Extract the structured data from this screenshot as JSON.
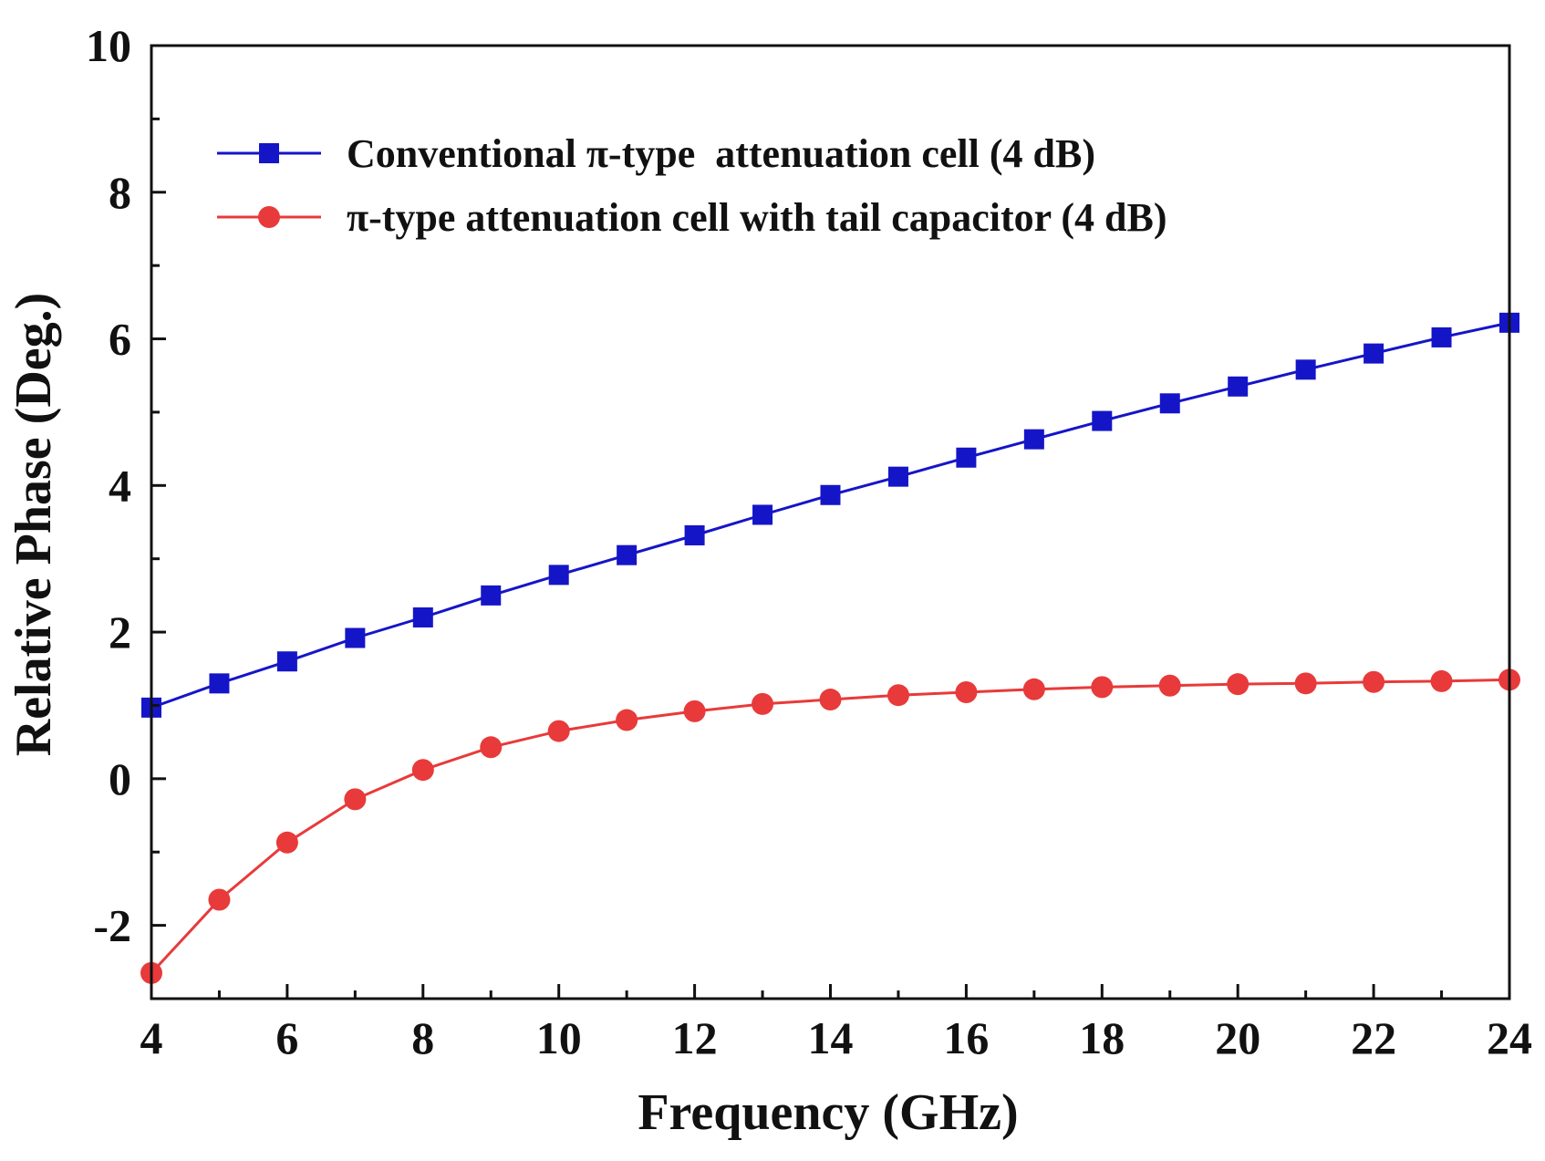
{
  "chart_data": {
    "type": "line",
    "title": "",
    "xlabel": "Frequency (GHz)",
    "ylabel": "Relative Phase (Deg.)",
    "xlim": [
      4,
      24
    ],
    "ylim": [
      -3,
      10
    ],
    "xticks": [
      4,
      6,
      8,
      10,
      12,
      14,
      16,
      18,
      20,
      22,
      24
    ],
    "yticks": [
      -2,
      0,
      2,
      4,
      6,
      8,
      10
    ],
    "grid": false,
    "legend_position": "top-left",
    "x": [
      4,
      5,
      6,
      7,
      8,
      9,
      10,
      11,
      12,
      13,
      14,
      15,
      16,
      17,
      18,
      19,
      20,
      21,
      22,
      23,
      24
    ],
    "series": [
      {
        "name": "Conventional π-type  attenuation cell (4 dB)",
        "color": "#1515c8",
        "marker": "square",
        "values": [
          0.97,
          1.3,
          1.6,
          1.92,
          2.2,
          2.5,
          2.78,
          3.05,
          3.32,
          3.6,
          3.87,
          4.12,
          4.38,
          4.63,
          4.88,
          5.12,
          5.35,
          5.58,
          5.8,
          6.02,
          6.22
        ]
      },
      {
        "name": "π-type attenuation cell with tail capacitor (4 dB)",
        "color": "#e83a3a",
        "marker": "circle",
        "values": [
          -2.65,
          -1.65,
          -0.87,
          -0.28,
          0.12,
          0.43,
          0.65,
          0.8,
          0.92,
          1.02,
          1.08,
          1.14,
          1.18,
          1.22,
          1.25,
          1.27,
          1.29,
          1.3,
          1.32,
          1.33,
          1.35
        ]
      }
    ]
  }
}
